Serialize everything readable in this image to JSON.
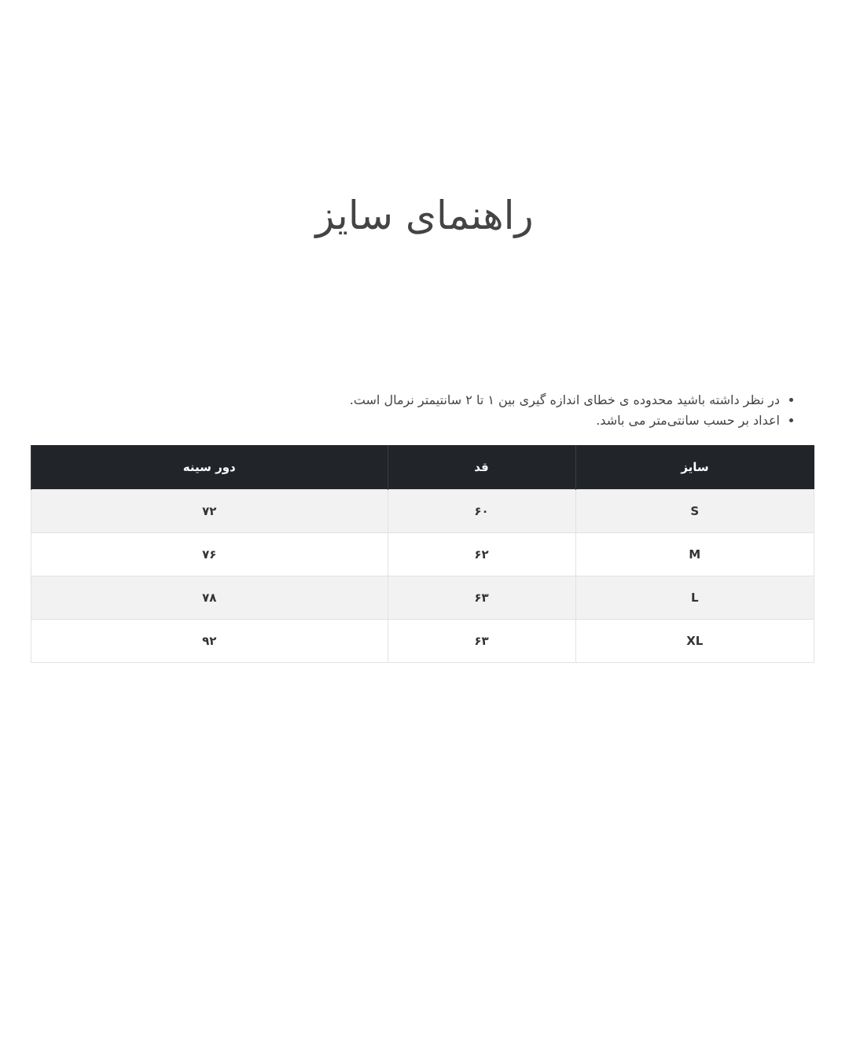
{
  "title": "راهنمای سایز",
  "notes": [
    "در نظر داشته باشید محدوده ی خطای اندازه گیری بین ۱ تا ۲ سانتیمتر نرمال است.",
    "اعداد بر حسب سانتی‌متر می باشد."
  ],
  "table": {
    "headers": [
      "سایز",
      "قد",
      "دور سینه"
    ],
    "rows": [
      [
        "S",
        "۶۰",
        "۷۲"
      ],
      [
        "M",
        "۶۲",
        "۷۶"
      ],
      [
        "L",
        "۶۳",
        "۷۸"
      ],
      [
        "XL",
        "۶۳",
        "۹۲"
      ]
    ]
  }
}
